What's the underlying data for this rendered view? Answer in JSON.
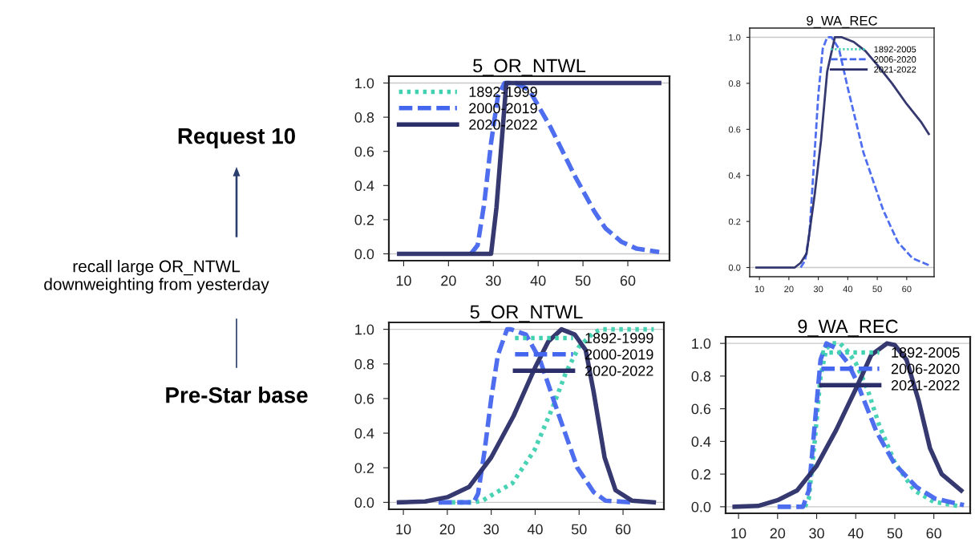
{
  "chart_data": [
    {
      "type": "other",
      "annotations": [
        "Request 10",
        "recall large OR_NTWL\ndownweighting from yesterday",
        "Pre-Star base"
      ]
    },
    {
      "type": "line",
      "title": "5_OR_NTWL",
      "xlim": [
        6.7,
        69.3
      ],
      "ylim": [
        -0.04,
        1.04
      ],
      "xticks": [
        10,
        20,
        30,
        40,
        50,
        60
      ],
      "yticks": [
        {
          "value": 0,
          "label": "0.0"
        },
        {
          "value": 0.2,
          "label": "0.2"
        },
        {
          "value": 0.4,
          "label": "0.4"
        },
        {
          "value": 0.6,
          "label": "0.6"
        },
        {
          "value": 0.8,
          "label": "0.8"
        },
        {
          "value": 1,
          "label": "1.0"
        }
      ],
      "ref_lines": [
        {
          "axis": "y",
          "value": 0,
          "color": "#c8c8c8"
        },
        {
          "axis": "y",
          "value": 1,
          "color": "#c8c8c8"
        }
      ],
      "grid": false,
      "legend": "top left",
      "series": [
        {
          "name": "1892-1999",
          "color": "#3fd1b0",
          "line_style": "dotted"
        },
        {
          "name": "2000-2019",
          "color": "#4466ee",
          "line_style": "dashed",
          "x": [
            25,
            26.5,
            28,
            29.5,
            31,
            32.5,
            35,
            38,
            42.8,
            48.3,
            52.5,
            55,
            58.6,
            62,
            67
          ],
          "values": [
            0,
            0.05,
            0.3,
            0.65,
            0.92,
            1.0,
            1.0,
            0.96,
            0.74,
            0.45,
            0.25,
            0.15,
            0.07,
            0.03,
            0.01
          ]
        },
        {
          "name": "2020-2022",
          "color": "#2b2e68",
          "line_style": "solid",
          "x": [
            9,
            29.5,
            30.7,
            32.9,
            67
          ],
          "values": [
            0,
            0,
            0.27,
            1.0,
            1.0
          ]
        }
      ]
    },
    {
      "type": "line",
      "title": "9_WA_REC",
      "xlim": [
        6.7,
        69.3
      ],
      "ylim": [
        -0.04,
        1.04
      ],
      "xticks": [
        10,
        20,
        30,
        40,
        50,
        60
      ],
      "yticks": [
        {
          "value": 0,
          "label": "0.0"
        },
        {
          "value": 0.2,
          "label": "0.2"
        },
        {
          "value": 0.4,
          "label": "0.4"
        },
        {
          "value": 0.6,
          "label": "0.6"
        },
        {
          "value": 0.8,
          "label": "0.8"
        },
        {
          "value": 1,
          "label": "1.0"
        }
      ],
      "ref_lines": [
        {
          "axis": "y",
          "value": 0,
          "color": "#c8c8c8"
        },
        {
          "axis": "y",
          "value": 1,
          "color": "#c8c8c8"
        }
      ],
      "grid": false,
      "legend": "top right",
      "series": [
        {
          "name": "1892-2005",
          "color": "#3fd1b0",
          "line_style": "dotted"
        },
        {
          "name": "2006-2020",
          "color": "#4466ee",
          "line_style": "dashed",
          "x": [
            24,
            25.5,
            27,
            28.5,
            30,
            31.5,
            33,
            34.5,
            37,
            40,
            45.3,
            52,
            57,
            62,
            67.5
          ],
          "values": [
            0,
            0.03,
            0.15,
            0.45,
            0.75,
            0.95,
            1.0,
            1.0,
            0.95,
            0.78,
            0.5,
            0.25,
            0.11,
            0.04,
            0.01
          ]
        },
        {
          "name": "2021-2022",
          "color": "#2b2e68",
          "line_style": "solid",
          "x": [
            9,
            22,
            24,
            26,
            28.8,
            30.9,
            33,
            35.6,
            38,
            42,
            46,
            50,
            55,
            60,
            65,
            67.5
          ],
          "values": [
            0,
            0,
            0.02,
            0.06,
            0.32,
            0.55,
            0.85,
            1.0,
            1.0,
            0.98,
            0.94,
            0.88,
            0.8,
            0.71,
            0.63,
            0.58
          ]
        }
      ]
    },
    {
      "type": "line",
      "title": "5_OR_NTWL",
      "xlim": [
        6.7,
        69.3
      ],
      "ylim": [
        -0.04,
        1.04
      ],
      "xticks": [
        10,
        20,
        30,
        40,
        50,
        60
      ],
      "yticks": [
        {
          "value": 0,
          "label": "0.0"
        },
        {
          "value": 0.2,
          "label": "0.2"
        },
        {
          "value": 0.4,
          "label": "0.4"
        },
        {
          "value": 0.6,
          "label": "0.6"
        },
        {
          "value": 0.8,
          "label": "0.8"
        },
        {
          "value": 1,
          "label": "1.0"
        }
      ],
      "ref_lines": [
        {
          "axis": "y",
          "value": 0,
          "color": "#c8c8c8"
        },
        {
          "axis": "y",
          "value": 1,
          "color": "#c8c8c8"
        }
      ],
      "grid": false,
      "legend": "top right",
      "series": [
        {
          "name": "1892-1999",
          "color": "#3fd1b0",
          "line_style": "dotted",
          "x": [
            21,
            26,
            28,
            30,
            34.8,
            39.8,
            44,
            47,
            50,
            53.3,
            55,
            67
          ],
          "values": [
            0,
            0,
            0.01,
            0.04,
            0.11,
            0.3,
            0.55,
            0.75,
            0.9,
            0.98,
            1.0,
            1.0
          ]
        },
        {
          "name": "2000-2019",
          "color": "#4466ee",
          "line_style": "dashed",
          "x": [
            18,
            26,
            27,
            28.5,
            30,
            31.5,
            33.6,
            34.5,
            37.9,
            41,
            45.3,
            49.6,
            53.3,
            56,
            62
          ],
          "values": [
            0,
            0,
            0.05,
            0.3,
            0.6,
            0.85,
            1.0,
            1.0,
            0.97,
            0.83,
            0.51,
            0.2,
            0.06,
            0.01,
            0
          ]
        },
        {
          "name": "2020-2022",
          "color": "#2b2e68",
          "line_style": "solid",
          "x": [
            9,
            15,
            20,
            25,
            30,
            35.1,
            40,
            43,
            46,
            49,
            51.5,
            53.3,
            55.8,
            58.3,
            62,
            67
          ],
          "values": [
            0,
            0.005,
            0.03,
            0.09,
            0.26,
            0.5,
            0.78,
            0.93,
            1.0,
            0.97,
            0.88,
            0.64,
            0.26,
            0.07,
            0.01,
            0
          ]
        }
      ]
    },
    {
      "type": "line",
      "title": "9_WA_REC",
      "xlim": [
        6.7,
        69.3
      ],
      "ylim": [
        -0.04,
        1.04
      ],
      "xticks": [
        10,
        20,
        30,
        40,
        50,
        60
      ],
      "yticks": [
        {
          "value": 0,
          "label": "0.0"
        },
        {
          "value": 0.2,
          "label": "0.2"
        },
        {
          "value": 0.4,
          "label": "0.4"
        },
        {
          "value": 0.6,
          "label": "0.6"
        },
        {
          "value": 0.8,
          "label": "0.8"
        },
        {
          "value": 1,
          "label": "1.0"
        }
      ],
      "ref_lines": [
        {
          "axis": "y",
          "value": 0,
          "color": "#c8c8c8"
        },
        {
          "axis": "y",
          "value": 1,
          "color": "#c8c8c8"
        }
      ],
      "grid": false,
      "legend": "top right",
      "series": [
        {
          "name": "1892-2005",
          "color": "#3fd1b0",
          "line_style": "dotted",
          "x": [
            27,
            28,
            29.5,
            31,
            32.5,
            34,
            36,
            38,
            40,
            43,
            46,
            50,
            55,
            60,
            65,
            67
          ],
          "values": [
            0,
            0.05,
            0.4,
            0.8,
            0.97,
            1.0,
            1.0,
            0.95,
            0.88,
            0.72,
            0.5,
            0.27,
            0.1,
            0.03,
            0.01,
            0
          ]
        },
        {
          "name": "2006-2020",
          "color": "#4466ee",
          "line_style": "dashed",
          "x": [
            20,
            26.5,
            28,
            29.5,
            31,
            32.5,
            35,
            38,
            40,
            45.3,
            50,
            55.6,
            60.3,
            67.7
          ],
          "values": [
            0,
            0,
            0.1,
            0.5,
            0.9,
            1.0,
            0.97,
            0.88,
            0.78,
            0.46,
            0.26,
            0.12,
            0.05,
            0.01
          ]
        },
        {
          "name": "2021-2022",
          "color": "#2b2e68",
          "line_style": "solid",
          "x": [
            9,
            15,
            20,
            25,
            30,
            35,
            40,
            44,
            48,
            50,
            53,
            56.1,
            59,
            62,
            67
          ],
          "values": [
            0,
            0.005,
            0.04,
            0.1,
            0.25,
            0.47,
            0.72,
            0.93,
            1.0,
            0.99,
            0.9,
            0.65,
            0.36,
            0.2,
            0.1
          ]
        }
      ]
    }
  ]
}
